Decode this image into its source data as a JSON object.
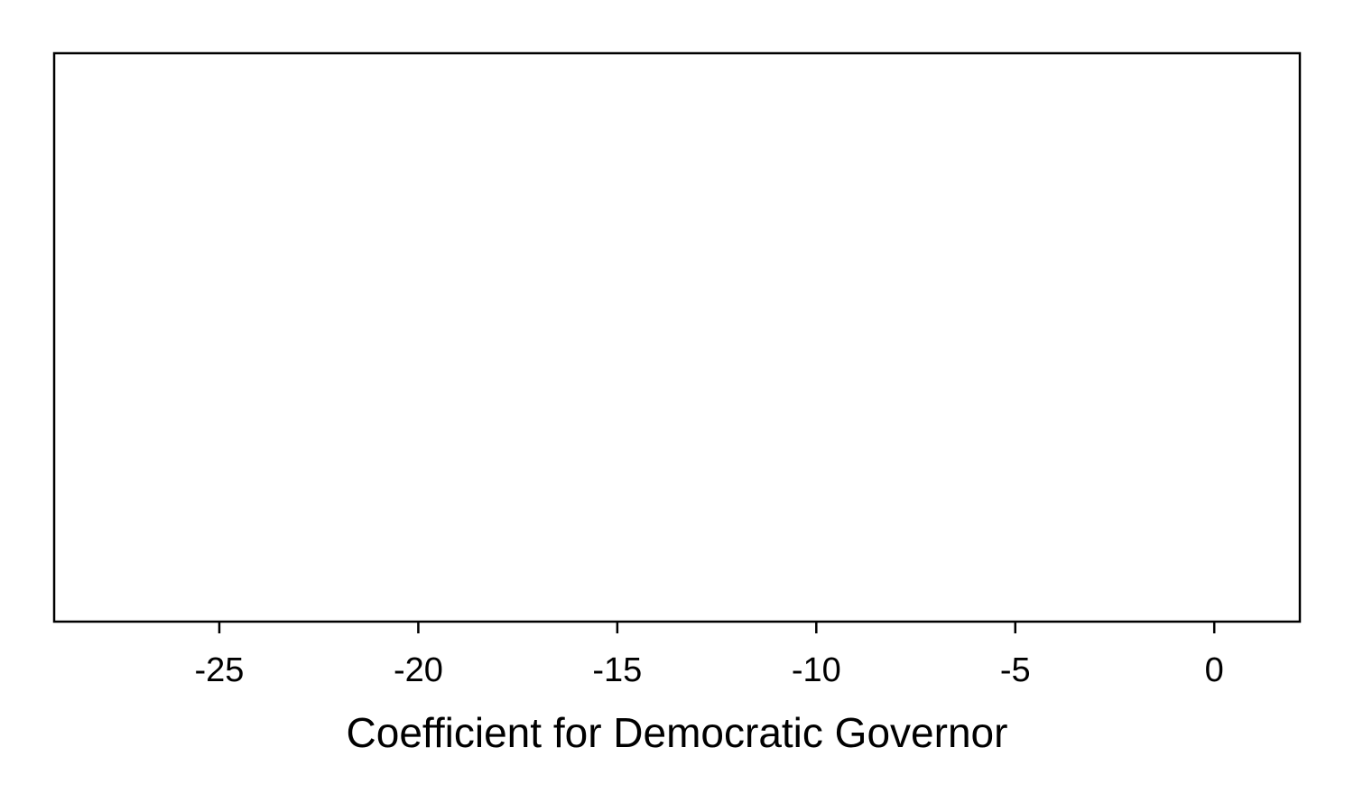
{
  "chart_data": {
    "type": "scatter",
    "title": "",
    "xlabel": "Coefficient for Democratic Governor",
    "ylabel": "",
    "xlim": [
      -29.15,
      2.15
    ],
    "xticks": [
      -25,
      -20,
      -15,
      -10,
      -5,
      0
    ],
    "xtick_labels": [
      "-25",
      "-20",
      "-15",
      "-10",
      "-5",
      "0"
    ],
    "series": [],
    "grid": false,
    "legend": "none",
    "colors": {
      "axis": "#000000",
      "background": "#ffffff"
    }
  }
}
